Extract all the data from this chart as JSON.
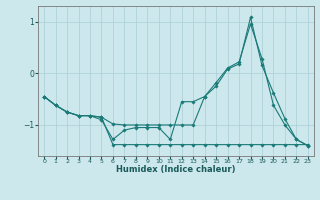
{
  "title": "",
  "xlabel": "Humidex (Indice chaleur)",
  "bg_color": "#cce8ec",
  "line_color": "#1a7a78",
  "grid_color": "#aacdd4",
  "axis_color": "#777777",
  "text_color": "#1a5a5a",
  "xlim": [
    -0.5,
    23.5
  ],
  "ylim": [
    -1.6,
    1.3
  ],
  "yticks": [
    -1,
    0,
    1
  ],
  "xticks": [
    0,
    1,
    2,
    3,
    4,
    5,
    6,
    7,
    8,
    9,
    10,
    11,
    12,
    13,
    14,
    15,
    16,
    17,
    18,
    19,
    20,
    21,
    22,
    23
  ],
  "line1_x": [
    0,
    1,
    2,
    3,
    4,
    5,
    6,
    7,
    8,
    9,
    10,
    11,
    12,
    13,
    14,
    15,
    16,
    17,
    18,
    19,
    20,
    21,
    22,
    23
  ],
  "line1_y": [
    -0.45,
    -0.62,
    -0.75,
    -0.82,
    -0.82,
    -0.85,
    -1.38,
    -1.38,
    -1.38,
    -1.38,
    -1.38,
    -1.38,
    -1.38,
    -1.38,
    -1.38,
    -1.38,
    -1.38,
    -1.38,
    -1.38,
    -1.38,
    -1.38,
    -1.38,
    -1.38,
    -1.38
  ],
  "line2_x": [
    0,
    1,
    2,
    3,
    4,
    5,
    6,
    7,
    8,
    9,
    10,
    11,
    12,
    13,
    14,
    15,
    16,
    17,
    18,
    19,
    20,
    21,
    22,
    23
  ],
  "line2_y": [
    -0.45,
    -0.62,
    -0.75,
    -0.82,
    -0.82,
    -0.9,
    -1.28,
    -1.1,
    -1.05,
    -1.05,
    -1.05,
    -1.28,
    -0.55,
    -0.55,
    -0.45,
    -0.18,
    0.1,
    0.22,
    0.95,
    0.28,
    -0.62,
    -1.0,
    -1.28,
    -1.4
  ],
  "line3_x": [
    0,
    1,
    2,
    3,
    4,
    5,
    6,
    7,
    8,
    9,
    10,
    11,
    12,
    13,
    14,
    15,
    16,
    17,
    18,
    19,
    20,
    21,
    22,
    23
  ],
  "line3_y": [
    -0.45,
    -0.62,
    -0.75,
    -0.82,
    -0.82,
    -0.85,
    -0.98,
    -1.0,
    -1.0,
    -1.0,
    -1.0,
    -1.0,
    -1.0,
    -1.0,
    -0.45,
    -0.25,
    0.08,
    0.18,
    1.08,
    0.15,
    -0.38,
    -0.88,
    -1.28,
    -1.4
  ]
}
